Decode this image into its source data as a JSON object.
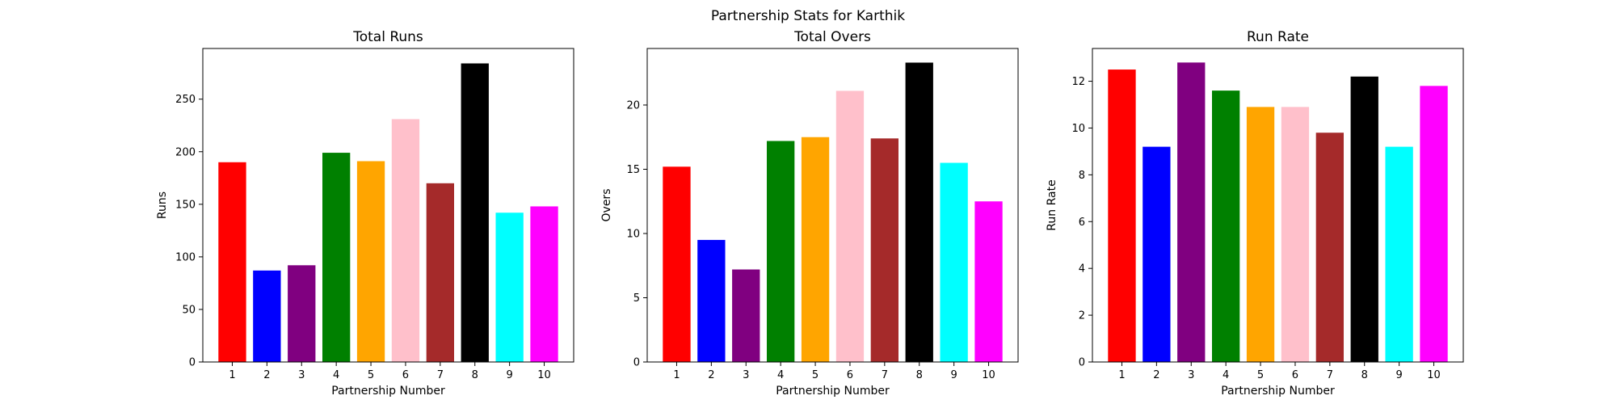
{
  "figure": {
    "suptitle": "Partnership Stats for Karthik"
  },
  "chart_data": [
    {
      "type": "bar",
      "title": "Total Runs",
      "xlabel": "Partnership Number",
      "ylabel": "Runs",
      "categories": [
        "1",
        "2",
        "3",
        "4",
        "5",
        "6",
        "7",
        "8",
        "9",
        "10"
      ],
      "values": [
        190,
        87,
        92,
        199,
        191,
        231,
        170,
        284,
        142,
        148
      ],
      "colors": [
        "#ff0000",
        "#0000ff",
        "#800080",
        "#008000",
        "#ffa500",
        "#ffc0cb",
        "#a52a2a",
        "#000000",
        "#00ffff",
        "#ff00ff"
      ],
      "ylim": [
        0,
        298.2
      ],
      "yticks": [
        0,
        50,
        100,
        150,
        200,
        250
      ],
      "grid": false
    },
    {
      "type": "bar",
      "title": "Total Overs",
      "xlabel": "Partnership Number",
      "ylabel": "Overs",
      "categories": [
        "1",
        "2",
        "3",
        "4",
        "5",
        "6",
        "7",
        "8",
        "9",
        "10"
      ],
      "values": [
        15.2,
        9.5,
        7.2,
        17.2,
        17.5,
        21.1,
        17.4,
        23.3,
        15.5,
        12.5
      ],
      "colors": [
        "#ff0000",
        "#0000ff",
        "#800080",
        "#008000",
        "#ffa500",
        "#ffc0cb",
        "#a52a2a",
        "#000000",
        "#00ffff",
        "#ff00ff"
      ],
      "ylim": [
        0,
        24.4
      ],
      "yticks": [
        0,
        5,
        10,
        15,
        20
      ],
      "grid": false
    },
    {
      "type": "bar",
      "title": "Run Rate",
      "xlabel": "Partnership Number",
      "ylabel": "Run Rate",
      "categories": [
        "1",
        "2",
        "3",
        "4",
        "5",
        "6",
        "7",
        "8",
        "9",
        "10"
      ],
      "values": [
        12.5,
        9.2,
        12.8,
        11.6,
        10.9,
        10.9,
        9.8,
        12.2,
        9.2,
        11.8
      ],
      "colors": [
        "#ff0000",
        "#0000ff",
        "#800080",
        "#008000",
        "#ffa500",
        "#ffc0cb",
        "#a52a2a",
        "#000000",
        "#00ffff",
        "#ff00ff"
      ],
      "ylim": [
        0,
        13.4
      ],
      "yticks": [
        0,
        2,
        4,
        6,
        8,
        10,
        12
      ],
      "grid": false
    }
  ]
}
